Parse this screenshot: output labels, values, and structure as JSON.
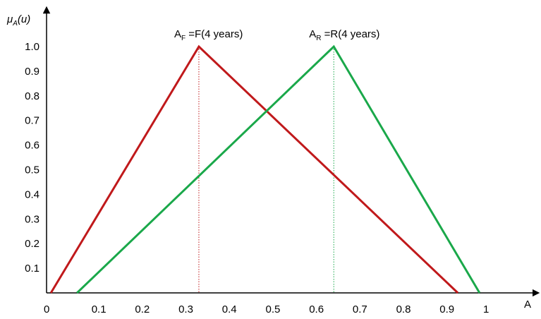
{
  "chart_data": {
    "type": "line",
    "title": "",
    "xlabel": "A",
    "ylabel": {
      "base": "μ",
      "sub": "A",
      "tail": "(u)"
    },
    "xlim": [
      0,
      1.05
    ],
    "ylim": [
      0,
      1.0
    ],
    "x_ticks": [
      0,
      0.1,
      0.2,
      0.3,
      0.4,
      0.5,
      0.6,
      0.7,
      0.8,
      0.9,
      1
    ],
    "x_tick_labels": [
      "0",
      "0.1",
      "0.2",
      "0.3",
      "0.4",
      "0.5",
      "0.6",
      "0.7",
      "0.8",
      "0.9",
      "1"
    ],
    "y_ticks": [
      0.1,
      0.2,
      0.3,
      0.4,
      0.5,
      0.6,
      0.7,
      0.8,
      0.9,
      1.0
    ],
    "y_tick_labels": [
      "0.1",
      "0.2",
      "0.3",
      "0.4",
      "0.5",
      "0.6",
      "0.7",
      "0.8",
      "0.9",
      "1.0"
    ],
    "grid": false,
    "series": [
      {
        "color": "#c0191b",
        "x": [
          0.01,
          0.35,
          0.945
        ],
        "y": [
          0,
          1,
          0
        ],
        "peak_label": {
          "base": "A",
          "sub": "F",
          "tail": " =F(4 years)"
        }
      },
      {
        "color": "#1aa84a",
        "x": [
          0.07,
          0.66,
          0.995
        ],
        "y": [
          0,
          1,
          0
        ],
        "peak_label": {
          "base": "A",
          "sub": "R",
          "tail": " =R(4 years)"
        }
      }
    ]
  }
}
